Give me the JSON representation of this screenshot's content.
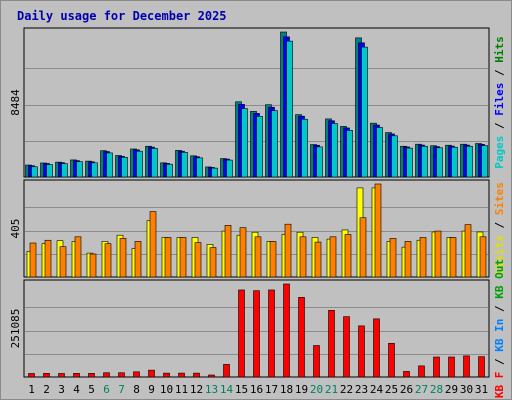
{
  "chart_data": {
    "type": "bar",
    "title": "Daily usage for December 2025",
    "categories": [
      "1",
      "2",
      "3",
      "4",
      "5",
      "6",
      "7",
      "8",
      "9",
      "10",
      "11",
      "12",
      "13",
      "14",
      "15",
      "16",
      "17",
      "18",
      "19",
      "20",
      "21",
      "22",
      "23",
      "24",
      "25",
      "26",
      "27",
      "28",
      "29",
      "30",
      "31"
    ],
    "weekend_days": [
      "6",
      "7",
      "13",
      "14",
      "20",
      "21",
      "27",
      "28"
    ],
    "panels": [
      {
        "max_label": "8484",
        "max": 8484,
        "side_labels": [
          {
            "text": "Pages",
            "color": "#00c8c8"
          },
          {
            "text": " / ",
            "color": "#000000"
          },
          {
            "text": "Files",
            "color": "#0000ff"
          },
          {
            "text": " / ",
            "color": "#000000"
          },
          {
            "text": "Hits",
            "color": "#008000"
          }
        ],
        "series": [
          {
            "name": "Hits",
            "color": "#008080",
            "values": [
              700,
              820,
              870,
              1000,
              930,
              1540,
              1260,
              1640,
              1800,
              830,
              1560,
              1240,
              590,
              1080,
              4400,
              3840,
              4230,
              8484,
              3650,
              1900,
              3400,
              2960,
              8140,
              3150,
              2600,
              1800,
              1920,
              1830,
              1860,
              1920,
              1960
            ]
          },
          {
            "name": "Files",
            "color": "#0000ff",
            "values": [
              660,
              790,
              840,
              960,
              890,
              1490,
              1210,
              1590,
              1750,
              800,
              1510,
              1190,
              560,
              1050,
              4250,
              3720,
              4080,
              8200,
              3560,
              1860,
              3290,
              2870,
              7850,
              3040,
              2520,
              1760,
              1870,
              1780,
              1810,
              1870,
              1910
            ]
          },
          {
            "name": "Pages",
            "color": "#00c8c8",
            "values": [
              600,
              730,
              780,
              900,
              830,
              1410,
              1150,
              1510,
              1670,
              750,
              1440,
              1120,
              520,
              990,
              4000,
              3550,
              3880,
              7950,
              3380,
              1760,
              3130,
              2730,
              7600,
              2900,
              2410,
              1690,
              1800,
              1710,
              1740,
              1800,
              1840
            ]
          }
        ]
      },
      {
        "max_label": "405",
        "max": 405,
        "side_labels": [
          {
            "text": "Visits",
            "color": "#e0e000"
          },
          {
            "text": " / ",
            "color": "#000000"
          },
          {
            "text": "Sites",
            "color": "#ff8000"
          }
        ],
        "series": [
          {
            "name": "Visits",
            "color": "#ffff00",
            "values": [
              112,
              145,
              158,
              155,
              104,
              155,
              182,
              124,
              245,
              172,
              172,
              172,
              142,
              200,
              182,
              195,
              155,
              185,
              195,
              172,
              165,
              205,
              388,
              388,
              155,
              130,
              160,
              196,
              172,
              200,
              196
            ]
          },
          {
            "name": "Sites",
            "color": "#ff8000",
            "values": [
              148,
              160,
              132,
              175,
              100,
              145,
              168,
              155,
              285,
              172,
              172,
              150,
              128,
              225,
              215,
              175,
              155,
              230,
              175,
              152,
              175,
              185,
              258,
              405,
              168,
              155,
              172,
              200,
              172,
              228,
              175
            ]
          }
        ]
      },
      {
        "max_label": "251085",
        "max": 251085,
        "side_labels": [
          {
            "text": "KB F",
            "color": "#ff0000"
          },
          {
            "text": " / ",
            "color": "#000000"
          },
          {
            "text": "KB In",
            "color": "#0080ff"
          },
          {
            "text": " / ",
            "color": "#000000"
          },
          {
            "text": "KB Out",
            "color": "#00a000"
          }
        ],
        "series": [
          {
            "name": "KB F",
            "color": "#ff0000",
            "values": [
              9500,
              9800,
              9500,
              9800,
              9800,
              11500,
              11500,
              14000,
              18500,
              10500,
              10500,
              10500,
              5400,
              34000,
              235000,
              233000,
              235000,
              251085,
              215000,
              85000,
              180000,
              163000,
              138000,
              157000,
              91000,
              15000,
              30000,
              54000,
              54000,
              57000,
              55000
            ]
          }
        ]
      }
    ]
  }
}
